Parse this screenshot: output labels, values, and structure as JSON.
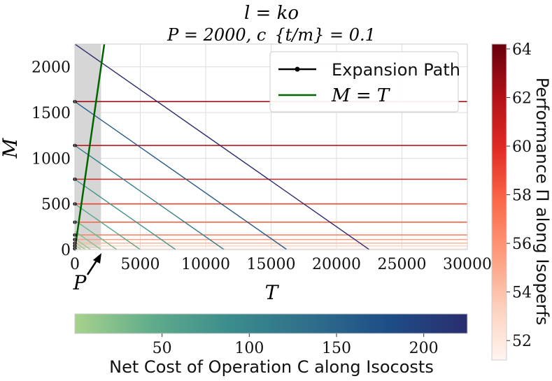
{
  "chart_data": {
    "type": "line",
    "title_line1": "l = ko",
    "title_line2": "P = 2000, c_{t/m} = 0.1",
    "xlabel": "T",
    "ylabel": "M",
    "xlim": [
      0,
      30000
    ],
    "ylim": [
      0,
      2250
    ],
    "x_ticks": [
      "0",
      "5000",
      "10000",
      "15000",
      "20000",
      "25000",
      "30000"
    ],
    "x_tick_values": [
      0,
      5000,
      10000,
      15000,
      20000,
      25000,
      30000
    ],
    "y_ticks": [
      "0",
      "500",
      "1000",
      "1500",
      "2000"
    ],
    "y_tick_values": [
      0,
      500,
      1000,
      1500,
      2000
    ],
    "shaded_region": {
      "x_from": 0,
      "x_to": 2000
    },
    "p_annotation": "P",
    "p_value": 2000,
    "legend": [
      {
        "label": "Expansion Path",
        "color": "#000000",
        "marker": "dot"
      },
      {
        "label": "M = T",
        "color": "#006400",
        "marker": "none"
      }
    ],
    "identity_line": {
      "name": "M = T",
      "color": "#006400",
      "x": [
        0,
        2250
      ],
      "y": [
        0,
        2250
      ]
    },
    "expansion_path": {
      "name": "Expansion Path",
      "color": "#000000",
      "x": [
        0,
        0,
        0,
        0,
        0,
        0,
        0,
        0,
        0,
        0
      ],
      "y": [
        10,
        40,
        70,
        110,
        160,
        300,
        500,
        770,
        1140,
        1620
      ]
    },
    "isocosts": {
      "colorbar_label": "Net Cost of Operation C along Isocosts",
      "colorbar_ticks": [
        "50",
        "100",
        "150",
        "200"
      ],
      "colorbar_tick_values": [
        50,
        100,
        150,
        200
      ],
      "colorbar_range": [
        0,
        225
      ],
      "colormap": [
        "#a7d28d",
        "#5fab8b",
        "#3a8c8c",
        "#2f6e8b",
        "#1e4d86",
        "#2a2d6e"
      ],
      "lines": [
        {
          "cost": 2,
          "t_intercept": 220,
          "m_intercept": 22
        },
        {
          "cost": 5,
          "t_intercept": 480,
          "m_intercept": 48
        },
        {
          "cost": 8,
          "t_intercept": 800,
          "m_intercept": 80
        },
        {
          "cost": 12,
          "t_intercept": 1200,
          "m_intercept": 120
        },
        {
          "cost": 20,
          "t_intercept": 2000,
          "m_intercept": 200
        },
        {
          "cost": 33,
          "t_intercept": 3200,
          "m_intercept": 320
        },
        {
          "cost": 50,
          "t_intercept": 5000,
          "m_intercept": 500
        },
        {
          "cost": 77,
          "t_intercept": 7700,
          "m_intercept": 770
        },
        {
          "cost": 114,
          "t_intercept": 11400,
          "m_intercept": 1140
        },
        {
          "cost": 162,
          "t_intercept": 16200,
          "m_intercept": 1620
        },
        {
          "cost": 225,
          "t_intercept": 22500,
          "m_intercept": 2250
        }
      ]
    },
    "isoperfs": {
      "colorbar_label": "Performance Π along Isoperfs",
      "colorbar_ticks": [
        "52",
        "54",
        "56",
        "58",
        "60",
        "62",
        "64"
      ],
      "colorbar_tick_values": [
        52,
        54,
        56,
        58,
        60,
        62,
        64
      ],
      "colorbar_range": [
        51.2,
        64.2
      ],
      "colormap": [
        "#fff5f0",
        "#fdd0bd",
        "#fc9c7d",
        "#fb6a4a",
        "#e12c26",
        "#b11218",
        "#67000d"
      ],
      "lines": [
        {
          "perf": 51.6,
          "m": 10
        },
        {
          "perf": 53.0,
          "m": 40
        },
        {
          "perf": 54.2,
          "m": 70
        },
        {
          "perf": 55.5,
          "m": 110
        },
        {
          "perf": 56.6,
          "m": 160
        },
        {
          "perf": 57.8,
          "m": 300
        },
        {
          "perf": 59.0,
          "m": 500
        },
        {
          "perf": 60.3,
          "m": 770
        },
        {
          "perf": 61.6,
          "m": 1140
        },
        {
          "perf": 62.8,
          "m": 1620
        }
      ]
    }
  }
}
